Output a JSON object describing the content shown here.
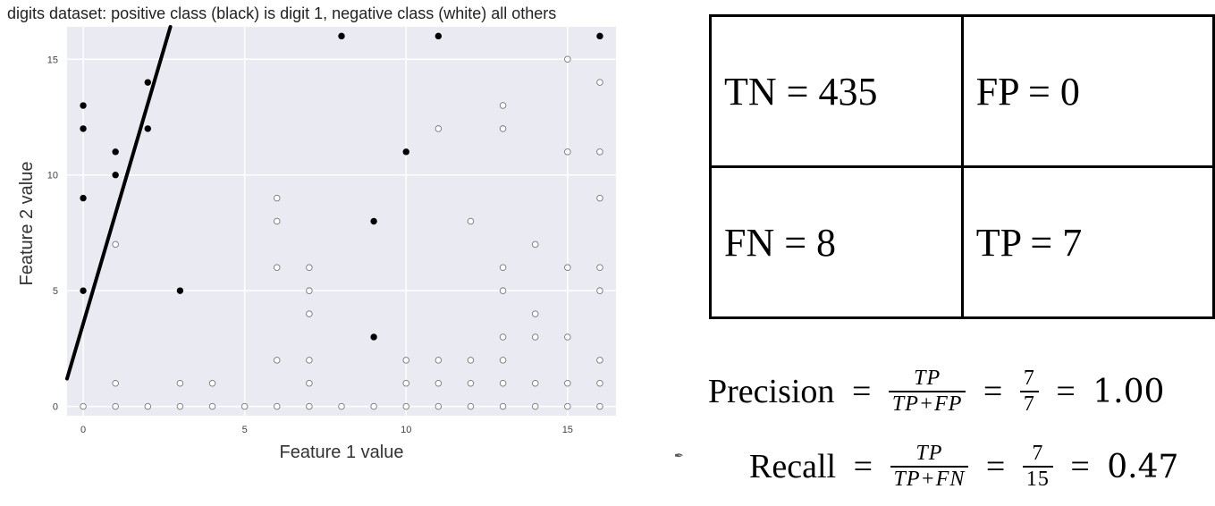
{
  "chart_data": {
    "type": "scatter",
    "title": "digits dataset: positive class (black) is digit 1, negative class (white) all others",
    "xlabel": "Feature 1 value",
    "ylabel": "Feature 2 value",
    "xlim": [
      -0.5,
      16.5
    ],
    "ylim": [
      -0.4,
      16.4
    ],
    "xticks": [
      0,
      5,
      10,
      15
    ],
    "yticks": [
      0,
      5,
      10,
      15
    ],
    "grid": true,
    "series": [
      {
        "color": "#000000",
        "fill": "filled",
        "points": [
          [
            0,
            13
          ],
          [
            0,
            12
          ],
          [
            0,
            9
          ],
          [
            0,
            5
          ],
          [
            1,
            11
          ],
          [
            1,
            10
          ],
          [
            2,
            14
          ],
          [
            2,
            12
          ],
          [
            3,
            5
          ],
          [
            8,
            16
          ],
          [
            9,
            8
          ],
          [
            9,
            3
          ],
          [
            10,
            11
          ],
          [
            11,
            16
          ],
          [
            16,
            16
          ]
        ]
      },
      {
        "color": "#ffffff",
        "fill": "hollow",
        "points": [
          [
            0,
            0
          ],
          [
            1,
            0
          ],
          [
            2,
            0
          ],
          [
            3,
            0
          ],
          [
            4,
            0
          ],
          [
            5,
            0
          ],
          [
            6,
            0
          ],
          [
            7,
            0
          ],
          [
            8,
            0
          ],
          [
            9,
            0
          ],
          [
            10,
            0
          ],
          [
            11,
            0
          ],
          [
            12,
            0
          ],
          [
            13,
            0
          ],
          [
            14,
            0
          ],
          [
            15,
            0
          ],
          [
            16,
            0
          ],
          [
            1,
            7
          ],
          [
            1,
            1
          ],
          [
            3,
            1
          ],
          [
            4,
            1
          ],
          [
            6,
            9
          ],
          [
            6,
            8
          ],
          [
            6,
            6
          ],
          [
            6,
            2
          ],
          [
            7,
            6
          ],
          [
            7,
            5
          ],
          [
            7,
            4
          ],
          [
            7,
            2
          ],
          [
            7,
            1
          ],
          [
            10,
            2
          ],
          [
            10,
            1
          ],
          [
            11,
            12
          ],
          [
            11,
            2
          ],
          [
            11,
            1
          ],
          [
            12,
            8
          ],
          [
            12,
            2
          ],
          [
            12,
            1
          ],
          [
            13,
            13
          ],
          [
            13,
            12
          ],
          [
            13,
            6
          ],
          [
            13,
            5
          ],
          [
            13,
            3
          ],
          [
            13,
            2
          ],
          [
            13,
            1
          ],
          [
            14,
            7
          ],
          [
            14,
            4
          ],
          [
            14,
            3
          ],
          [
            14,
            1
          ],
          [
            15,
            15
          ],
          [
            15,
            11
          ],
          [
            15,
            6
          ],
          [
            15,
            3
          ],
          [
            15,
            1
          ],
          [
            16,
            14
          ],
          [
            16,
            11
          ],
          [
            16,
            9
          ],
          [
            16,
            6
          ],
          [
            16,
            5
          ],
          [
            16,
            2
          ],
          [
            16,
            1
          ]
        ]
      }
    ],
    "decision_line": [
      [
        -0.5,
        1.2
      ],
      [
        2.7,
        16.4
      ]
    ]
  },
  "confusion_matrix": {
    "tn": "TN =  435",
    "fp": "FP =  0",
    "fn": "FN = 8",
    "tp": "TP = 7"
  },
  "precision": {
    "label": "Precision",
    "equals": "=",
    "num": "TP",
    "den": "TP+FP",
    "value_num": "7",
    "value_den": "7",
    "result": "1.00"
  },
  "recall": {
    "label": "Recall",
    "equals": "=",
    "num": "TP",
    "den": "TP+FN",
    "value_num": "7",
    "value_den": "15",
    "result": "0.47"
  },
  "icons": {
    "cursor": "pen-cursor-icon"
  }
}
